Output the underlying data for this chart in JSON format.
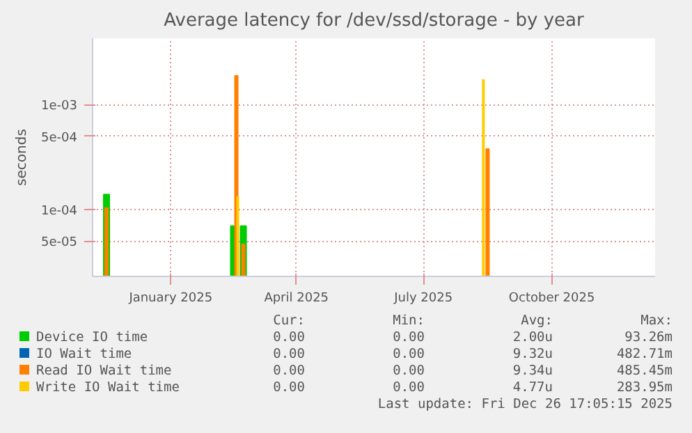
{
  "chart_data": {
    "type": "bar",
    "title": "Average latency for /dev/ssd/storage - by year",
    "ylabel": "seconds",
    "log": true,
    "grid": true,
    "legend": "bottom",
    "xlim": [
      "2024-11-20",
      "2025-12-28"
    ],
    "xticks": [
      {
        "value": "2025-01-15",
        "label": "January 2025"
      },
      {
        "value": "2025-04-15",
        "label": "April 2025"
      },
      {
        "value": "2025-07-15",
        "label": "July 2025"
      },
      {
        "value": "2025-10-15",
        "label": "October 2025"
      }
    ],
    "ylim": [
      2.3e-05,
      0.0043
    ],
    "yticks": [
      {
        "value": 5e-05,
        "label": "5e-05"
      },
      {
        "value": 0.0001,
        "label": "1e-04"
      },
      {
        "value": 0.0005,
        "label": "5e-04"
      },
      {
        "value": 0.001,
        "label": "1e-03"
      }
    ],
    "series": [
      {
        "name": "Device IO time",
        "color": "#00cc00",
        "x": [
          "2024-11-30",
          "2025-03-01",
          "2025-03-08"
        ],
        "values": [
          0.00014,
          7e-05,
          7e-05
        ]
      },
      {
        "name": "IO Wait time",
        "color": "#0066b3"
      },
      {
        "name": "Read IO Wait time",
        "color": "#ff8000",
        "x": [
          "2024-11-30",
          "2025-03-03",
          "2025-03-08",
          "2025-08-30"
        ],
        "values": [
          0.000104,
          0.0019,
          4.7e-05,
          0.00038
        ]
      },
      {
        "name": "Write IO Wait time",
        "color": "#ffcc00",
        "x": [
          "2025-03-04",
          "2025-08-27"
        ],
        "values": [
          0.000133,
          0.00174
        ]
      }
    ],
    "annotations": [
      "Cur:",
      "Min:",
      "Avg:",
      "Max:",
      "0.00",
      "0.00",
      "2.00u",
      "93.26m",
      "0.00",
      "0.00",
      "9.32u",
      "482.71m",
      "0.00",
      "0.00",
      "9.34u",
      "485.45m",
      "0.00",
      "0.00",
      "4.77u",
      "283.95m",
      "Last update: Fri Dec 26 17:05:15 2025"
    ]
  }
}
